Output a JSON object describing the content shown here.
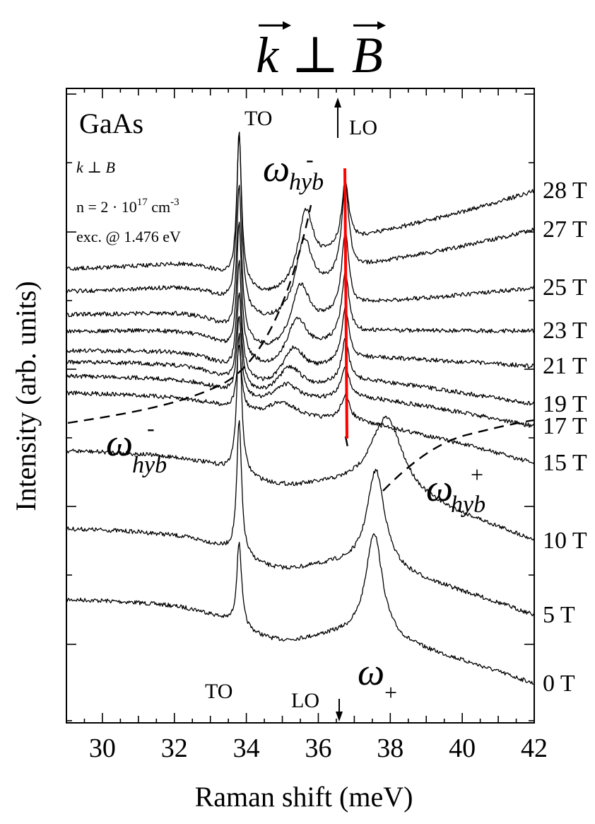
{
  "chart_data": {
    "type": "line",
    "title": "k ⊥ B",
    "xlabel": "Raman shift (meV)",
    "ylabel": "Intensity (arb. units)",
    "xlim": [
      29,
      42
    ],
    "x_ticks": [
      30,
      32,
      34,
      36,
      38,
      40,
      42
    ],
    "x_minor_step": 0.5,
    "y_ticks_unlabeled": true,
    "grid": false,
    "legend": "none",
    "sample": {
      "material": "GaAs",
      "geometry": "k ⊥ B",
      "density_prefix": "n = 2 · 10",
      "density_exp": "17",
      "density_unit": " cm",
      "density_unit_exp": "-3",
      "excitation": "exc. @ 1.476 eV"
    },
    "mode_labels": {
      "to_top": "TO",
      "to_bottom": "TO",
      "lo_top": "LO",
      "lo_bottom": "LO",
      "omega": "ω",
      "hyb": "hyb",
      "minus": "-",
      "plus": "+",
      "omega_plus_sub": "+"
    },
    "reference_lines": {
      "TO_meV": 33.8,
      "LO_meV": 36.65
    },
    "series": [
      {
        "name": "0 T",
        "field_T": 0,
        "peaks_meV": [
          33.8,
          37.55
        ]
      },
      {
        "name": "5 T",
        "field_T": 5,
        "peaks_meV": [
          33.8,
          37.6
        ]
      },
      {
        "name": "10 T",
        "field_T": 10,
        "peaks_meV": [
          33.8,
          37.9
        ]
      },
      {
        "name": "15 T",
        "field_T": 15,
        "peaks_meV": [
          33.8,
          35.0,
          36.75
        ]
      },
      {
        "name": "17 T",
        "field_T": 17,
        "peaks_meV": [
          33.8,
          35.1,
          36.75
        ]
      },
      {
        "name": "19 T",
        "field_T": 19,
        "peaks_meV": [
          33.8,
          35.2,
          36.75
        ]
      },
      {
        "name": "21 T",
        "field_T": 21,
        "peaks_meV": [
          33.8,
          35.3,
          36.75
        ]
      },
      {
        "name": "23 T",
        "field_T": 23,
        "peaks_meV": [
          33.8,
          35.4,
          36.75
        ]
      },
      {
        "name": "25 T",
        "field_T": 25,
        "peaks_meV": [
          33.8,
          35.5,
          36.75
        ]
      },
      {
        "name": "27 T",
        "field_T": 27,
        "peaks_meV": [
          33.8,
          35.6,
          36.75
        ]
      },
      {
        "name": "28 T",
        "field_T": 28,
        "peaks_meV": [
          33.8,
          35.65,
          36.75
        ]
      }
    ],
    "colors": {
      "lo_line": "#ff0000",
      "axes": "#000000"
    }
  }
}
